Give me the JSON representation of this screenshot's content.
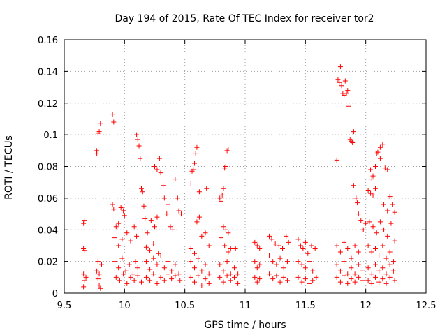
{
  "chart_data": {
    "type": "scatter",
    "title": "Day 194 of 2015, Rate Of TEC Index for receiver tor2",
    "xlabel": "GPS time / hours",
    "ylabel": "ROTI / TECUs",
    "xlim": [
      9.5,
      12.5
    ],
    "ylim": [
      0,
      0.16
    ],
    "xticks": [
      9.5,
      10,
      10.5,
      11,
      11.5,
      12,
      12.5
    ],
    "xtick_labels": [
      "9.5",
      "10",
      "10.5",
      "11",
      "11.5",
      "12",
      "12.5"
    ],
    "yticks": [
      0,
      0.02,
      0.04,
      0.06,
      0.08,
      0.1,
      0.12,
      0.14,
      0.16
    ],
    "ytick_labels": [
      "0",
      "0.02",
      "0.04",
      "0.06",
      "0.08",
      "0.1",
      "0.12",
      "0.14",
      "0.16"
    ],
    "grid": true,
    "marker": "+",
    "marker_color": "#ff0000",
    "series": [
      {
        "name": "ROTI",
        "points": [
          [
            9.66,
            0.044
          ],
          [
            9.67,
            0.046
          ],
          [
            9.66,
            0.028
          ],
          [
            9.67,
            0.027
          ],
          [
            9.66,
            0.012
          ],
          [
            9.67,
            0.008
          ],
          [
            9.68,
            0.01
          ],
          [
            9.66,
            0.004
          ],
          [
            9.77,
            0.088
          ],
          [
            9.77,
            0.09
          ],
          [
            9.78,
            0.101
          ],
          [
            9.79,
            0.102
          ],
          [
            9.8,
            0.107
          ],
          [
            9.78,
            0.02
          ],
          [
            9.77,
            0.014
          ],
          [
            9.78,
            0.009
          ],
          [
            9.79,
            0.005
          ],
          [
            9.8,
            0.003
          ],
          [
            9.79,
            0.012
          ],
          [
            9.81,
            0.018
          ],
          [
            9.9,
            0.113
          ],
          [
            9.91,
            0.108
          ],
          [
            9.9,
            0.056
          ],
          [
            9.91,
            0.053
          ],
          [
            9.93,
            0.042
          ],
          [
            9.95,
            0.044
          ],
          [
            9.97,
            0.054
          ],
          [
            9.99,
            0.052
          ],
          [
            10.0,
            0.049
          ],
          [
            9.92,
            0.035
          ],
          [
            9.95,
            0.03
          ],
          [
            9.98,
            0.034
          ],
          [
            10.02,
            0.038
          ],
          [
            10.05,
            0.033
          ],
          [
            10.08,
            0.042
          ],
          [
            10.1,
            0.036
          ],
          [
            9.92,
            0.02
          ],
          [
            9.95,
            0.016
          ],
          [
            9.98,
            0.022
          ],
          [
            10.01,
            0.014
          ],
          [
            10.04,
            0.018
          ],
          [
            10.07,
            0.012
          ],
          [
            10.09,
            0.02
          ],
          [
            10.11,
            0.016
          ],
          [
            9.93,
            0.01
          ],
          [
            9.96,
            0.008
          ],
          [
            9.99,
            0.012
          ],
          [
            10.02,
            0.006
          ],
          [
            10.05,
            0.01
          ],
          [
            10.08,
            0.008
          ],
          [
            10.11,
            0.011
          ],
          [
            10.14,
            0.007
          ],
          [
            10.1,
            0.1
          ],
          [
            10.11,
            0.097
          ],
          [
            10.12,
            0.093
          ],
          [
            10.13,
            0.085
          ],
          [
            10.14,
            0.066
          ],
          [
            10.15,
            0.064
          ],
          [
            10.16,
            0.055
          ],
          [
            10.17,
            0.047
          ],
          [
            10.19,
            0.038
          ],
          [
            10.22,
            0.046
          ],
          [
            10.25,
            0.042
          ],
          [
            10.27,
            0.048
          ],
          [
            10.18,
            0.029
          ],
          [
            10.21,
            0.027
          ],
          [
            10.24,
            0.031
          ],
          [
            10.28,
            0.025
          ],
          [
            10.25,
            0.08
          ],
          [
            10.27,
            0.078
          ],
          [
            10.29,
            0.085
          ],
          [
            10.3,
            0.076
          ],
          [
            10.32,
            0.068
          ],
          [
            10.33,
            0.06
          ],
          [
            10.35,
            0.05
          ],
          [
            10.36,
            0.056
          ],
          [
            10.38,
            0.042
          ],
          [
            10.4,
            0.04
          ],
          [
            10.42,
            0.072
          ],
          [
            10.44,
            0.06
          ],
          [
            10.45,
            0.052
          ],
          [
            10.47,
            0.05
          ],
          [
            10.18,
            0.02
          ],
          [
            10.21,
            0.015
          ],
          [
            10.24,
            0.022
          ],
          [
            10.27,
            0.018
          ],
          [
            10.3,
            0.024
          ],
          [
            10.33,
            0.016
          ],
          [
            10.36,
            0.02
          ],
          [
            10.39,
            0.014
          ],
          [
            10.42,
            0.018
          ],
          [
            10.45,
            0.012
          ],
          [
            10.18,
            0.01
          ],
          [
            10.21,
            0.008
          ],
          [
            10.24,
            0.012
          ],
          [
            10.27,
            0.006
          ],
          [
            10.3,
            0.01
          ],
          [
            10.33,
            0.008
          ],
          [
            10.36,
            0.012
          ],
          [
            10.39,
            0.009
          ],
          [
            10.42,
            0.011
          ],
          [
            10.46,
            0.008
          ],
          [
            10.55,
            0.069
          ],
          [
            10.56,
            0.077
          ],
          [
            10.57,
            0.078
          ],
          [
            10.58,
            0.082
          ],
          [
            10.59,
            0.088
          ],
          [
            10.6,
            0.092
          ],
          [
            10.62,
            0.064
          ],
          [
            10.68,
            0.066
          ],
          [
            10.6,
            0.045
          ],
          [
            10.62,
            0.048
          ],
          [
            10.64,
            0.036
          ],
          [
            10.67,
            0.038
          ],
          [
            10.7,
            0.03
          ],
          [
            10.55,
            0.028
          ],
          [
            10.58,
            0.025
          ],
          [
            10.55,
            0.02
          ],
          [
            10.58,
            0.016
          ],
          [
            10.61,
            0.022
          ],
          [
            10.64,
            0.014
          ],
          [
            10.67,
            0.018
          ],
          [
            10.7,
            0.012
          ],
          [
            10.55,
            0.01
          ],
          [
            10.58,
            0.007
          ],
          [
            10.61,
            0.011
          ],
          [
            10.64,
            0.005
          ],
          [
            10.67,
            0.009
          ],
          [
            10.7,
            0.006
          ],
          [
            10.79,
            0.06
          ],
          [
            10.8,
            0.058
          ],
          [
            10.81,
            0.062
          ],
          [
            10.82,
            0.066
          ],
          [
            10.83,
            0.079
          ],
          [
            10.84,
            0.08
          ],
          [
            10.85,
            0.09
          ],
          [
            10.86,
            0.091
          ],
          [
            10.82,
            0.042
          ],
          [
            10.84,
            0.04
          ],
          [
            10.86,
            0.038
          ],
          [
            10.8,
            0.035
          ],
          [
            10.83,
            0.03
          ],
          [
            10.86,
            0.026
          ],
          [
            10.88,
            0.028
          ],
          [
            10.92,
            0.028
          ],
          [
            10.79,
            0.018
          ],
          [
            10.82,
            0.014
          ],
          [
            10.85,
            0.02
          ],
          [
            10.88,
            0.012
          ],
          [
            10.91,
            0.016
          ],
          [
            10.94,
            0.012
          ],
          [
            10.79,
            0.01
          ],
          [
            10.82,
            0.007
          ],
          [
            10.85,
            0.011
          ],
          [
            10.88,
            0.008
          ],
          [
            10.91,
            0.01
          ],
          [
            10.94,
            0.006
          ],
          [
            11.08,
            0.032
          ],
          [
            11.1,
            0.03
          ],
          [
            11.12,
            0.028
          ],
          [
            11.08,
            0.02
          ],
          [
            11.1,
            0.016
          ],
          [
            11.12,
            0.018
          ],
          [
            11.08,
            0.01
          ],
          [
            11.1,
            0.007
          ],
          [
            11.12,
            0.009
          ],
          [
            11.2,
            0.036
          ],
          [
            11.22,
            0.034
          ],
          [
            11.25,
            0.031
          ],
          [
            11.28,
            0.03
          ],
          [
            11.31,
            0.028
          ],
          [
            11.34,
            0.036
          ],
          [
            11.36,
            0.032
          ],
          [
            11.2,
            0.024
          ],
          [
            11.23,
            0.02
          ],
          [
            11.26,
            0.018
          ],
          [
            11.29,
            0.022
          ],
          [
            11.32,
            0.016
          ],
          [
            11.35,
            0.02
          ],
          [
            11.2,
            0.012
          ],
          [
            11.23,
            0.009
          ],
          [
            11.26,
            0.011
          ],
          [
            11.29,
            0.007
          ],
          [
            11.32,
            0.01
          ],
          [
            11.35,
            0.008
          ],
          [
            11.44,
            0.034
          ],
          [
            11.46,
            0.03
          ],
          [
            11.48,
            0.028
          ],
          [
            11.5,
            0.032
          ],
          [
            11.52,
            0.025
          ],
          [
            11.55,
            0.03
          ],
          [
            11.58,
            0.028
          ],
          [
            11.44,
            0.02
          ],
          [
            11.47,
            0.018
          ],
          [
            11.5,
            0.016
          ],
          [
            11.53,
            0.02
          ],
          [
            11.56,
            0.014
          ],
          [
            11.44,
            0.01
          ],
          [
            11.47,
            0.007
          ],
          [
            11.5,
            0.009
          ],
          [
            11.53,
            0.006
          ],
          [
            11.56,
            0.008
          ],
          [
            11.59,
            0.01
          ],
          [
            11.76,
            0.084
          ],
          [
            11.77,
            0.135
          ],
          [
            11.78,
            0.133
          ],
          [
            11.79,
            0.143
          ],
          [
            11.8,
            0.131
          ],
          [
            11.81,
            0.126
          ],
          [
            11.82,
            0.125
          ],
          [
            11.83,
            0.134
          ],
          [
            11.84,
            0.126
          ],
          [
            11.85,
            0.128
          ],
          [
            11.86,
            0.118
          ],
          [
            11.87,
            0.097
          ],
          [
            11.88,
            0.096
          ],
          [
            11.89,
            0.095
          ],
          [
            11.9,
            0.102
          ],
          [
            11.9,
            0.068
          ],
          [
            11.92,
            0.06
          ],
          [
            11.93,
            0.057
          ],
          [
            11.94,
            0.05
          ],
          [
            11.96,
            0.046
          ],
          [
            11.98,
            0.04
          ],
          [
            12.0,
            0.044
          ],
          [
            11.76,
            0.03
          ],
          [
            11.79,
            0.026
          ],
          [
            11.82,
            0.032
          ],
          [
            11.85,
            0.028
          ],
          [
            11.88,
            0.022
          ],
          [
            11.91,
            0.03
          ],
          [
            11.94,
            0.026
          ],
          [
            11.97,
            0.024
          ],
          [
            11.76,
            0.018
          ],
          [
            11.79,
            0.014
          ],
          [
            11.82,
            0.02
          ],
          [
            11.85,
            0.012
          ],
          [
            11.88,
            0.016
          ],
          [
            11.91,
            0.012
          ],
          [
            11.94,
            0.018
          ],
          [
            11.97,
            0.014
          ],
          [
            11.76,
            0.01
          ],
          [
            11.79,
            0.007
          ],
          [
            11.82,
            0.011
          ],
          [
            11.85,
            0.006
          ],
          [
            11.88,
            0.009
          ],
          [
            11.91,
            0.007
          ],
          [
            11.94,
            0.01
          ],
          [
            11.97,
            0.008
          ],
          [
            12.04,
            0.078
          ],
          [
            12.05,
            0.072
          ],
          [
            12.06,
            0.074
          ],
          [
            12.08,
            0.08
          ],
          [
            12.09,
            0.088
          ],
          [
            12.1,
            0.089
          ],
          [
            12.12,
            0.092
          ],
          [
            12.14,
            0.094
          ],
          [
            12.12,
            0.085
          ],
          [
            12.16,
            0.079
          ],
          [
            12.18,
            0.078
          ],
          [
            12.02,
            0.065
          ],
          [
            12.04,
            0.063
          ],
          [
            12.06,
            0.062
          ],
          [
            12.08,
            0.066
          ],
          [
            12.2,
            0.061
          ],
          [
            12.22,
            0.056
          ],
          [
            12.24,
            0.051
          ],
          [
            12.15,
            0.056
          ],
          [
            12.18,
            0.052
          ],
          [
            12.03,
            0.045
          ],
          [
            12.06,
            0.042
          ],
          [
            12.09,
            0.038
          ],
          [
            12.12,
            0.045
          ],
          [
            12.15,
            0.04
          ],
          [
            12.18,
            0.036
          ],
          [
            12.21,
            0.044
          ],
          [
            12.24,
            0.033
          ],
          [
            12.02,
            0.03
          ],
          [
            12.05,
            0.026
          ],
          [
            12.08,
            0.028
          ],
          [
            12.11,
            0.024
          ],
          [
            12.14,
            0.03
          ],
          [
            12.17,
            0.022
          ],
          [
            12.2,
            0.026
          ],
          [
            12.23,
            0.02
          ],
          [
            12.02,
            0.016
          ],
          [
            12.05,
            0.012
          ],
          [
            12.08,
            0.018
          ],
          [
            12.11,
            0.014
          ],
          [
            12.14,
            0.016
          ],
          [
            12.17,
            0.012
          ],
          [
            12.2,
            0.018
          ],
          [
            12.23,
            0.014
          ],
          [
            12.02,
            0.008
          ],
          [
            12.05,
            0.006
          ],
          [
            12.08,
            0.01
          ],
          [
            12.11,
            0.007
          ],
          [
            12.14,
            0.009
          ],
          [
            12.17,
            0.006
          ],
          [
            12.2,
            0.01
          ],
          [
            12.24,
            0.008
          ]
        ]
      }
    ]
  }
}
